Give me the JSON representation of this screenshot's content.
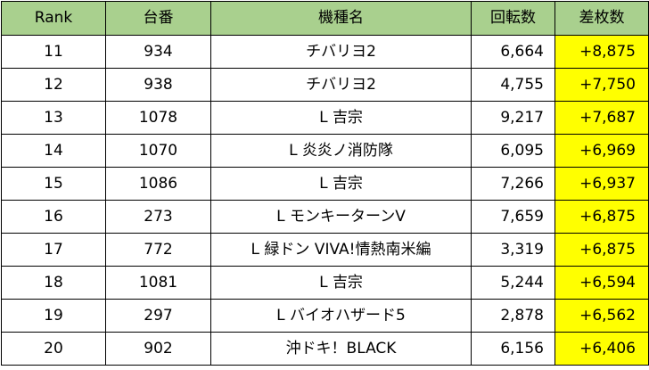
{
  "table": {
    "headers": {
      "rank": "Rank",
      "machine_no": "台番",
      "model": "機種名",
      "spins": "回転数",
      "diff": "差枚数"
    },
    "rows": [
      {
        "rank": "11",
        "machine_no": "934",
        "model": "チバリヨ2",
        "spins": "6,664",
        "diff": "+8,875"
      },
      {
        "rank": "12",
        "machine_no": "938",
        "model": "チバリヨ2",
        "spins": "4,755",
        "diff": "+7,750"
      },
      {
        "rank": "13",
        "machine_no": "1078",
        "model": "L 吉宗",
        "spins": "9,217",
        "diff": "+7,687"
      },
      {
        "rank": "14",
        "machine_no": "1070",
        "model": "L 炎炎ノ消防隊",
        "spins": "6,095",
        "diff": "+6,969"
      },
      {
        "rank": "15",
        "machine_no": "1086",
        "model": "L 吉宗",
        "spins": "7,266",
        "diff": "+6,937"
      },
      {
        "rank": "16",
        "machine_no": "273",
        "model": "L モンキーターンV",
        "spins": "7,659",
        "diff": "+6,875"
      },
      {
        "rank": "17",
        "machine_no": "772",
        "model": "L 緑ドン VIVA!情熱南米編",
        "spins": "3,319",
        "diff": "+6,875"
      },
      {
        "rank": "18",
        "machine_no": "1081",
        "model": "L 吉宗",
        "spins": "5,244",
        "diff": "+6,594"
      },
      {
        "rank": "19",
        "machine_no": "297",
        "model": "L バイオハザード5",
        "spins": "2,878",
        "diff": "+6,562"
      },
      {
        "rank": "20",
        "machine_no": "902",
        "model": "沖ドキ！BLACK",
        "spins": "6,156",
        "diff": "+6,406"
      }
    ]
  },
  "colors": {
    "header_background": "#a9d08e",
    "highlight_background": "#ffff00",
    "border": "#000000"
  }
}
